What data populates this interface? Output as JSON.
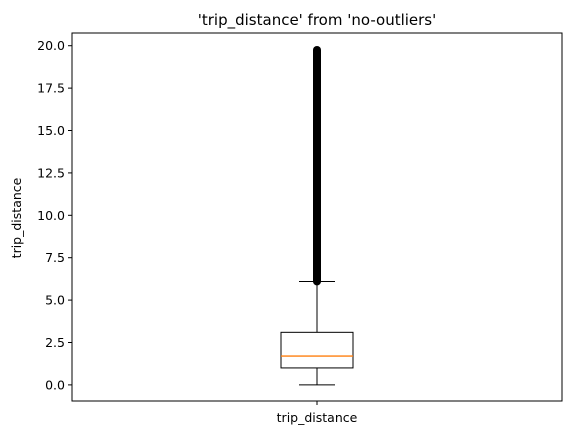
{
  "chart_data": {
    "type": "box",
    "title": "'trip_distance' from 'no-outliers'",
    "xlabel": "",
    "ylabel": "trip_distance",
    "categories": [
      "trip_distance"
    ],
    "ylim": [
      -0.95,
      20.75
    ],
    "yticks": [
      0.0,
      2.5,
      5.0,
      7.5,
      10.0,
      12.5,
      15.0,
      17.5,
      20.0
    ],
    "ytick_labels": [
      "0.0",
      "2.5",
      "5.0",
      "7.5",
      "10.0",
      "12.5",
      "15.0",
      "17.5",
      "20.0"
    ],
    "grid": false,
    "box": {
      "whisker_low": 0.0,
      "q1": 1.0,
      "median": 1.7,
      "q3": 3.1,
      "whisker_high": 6.1,
      "outliers_range": [
        6.1,
        19.75
      ]
    },
    "colors": {
      "box": "#000000",
      "median": "#ff7f0e",
      "outliers": "#000000"
    }
  }
}
